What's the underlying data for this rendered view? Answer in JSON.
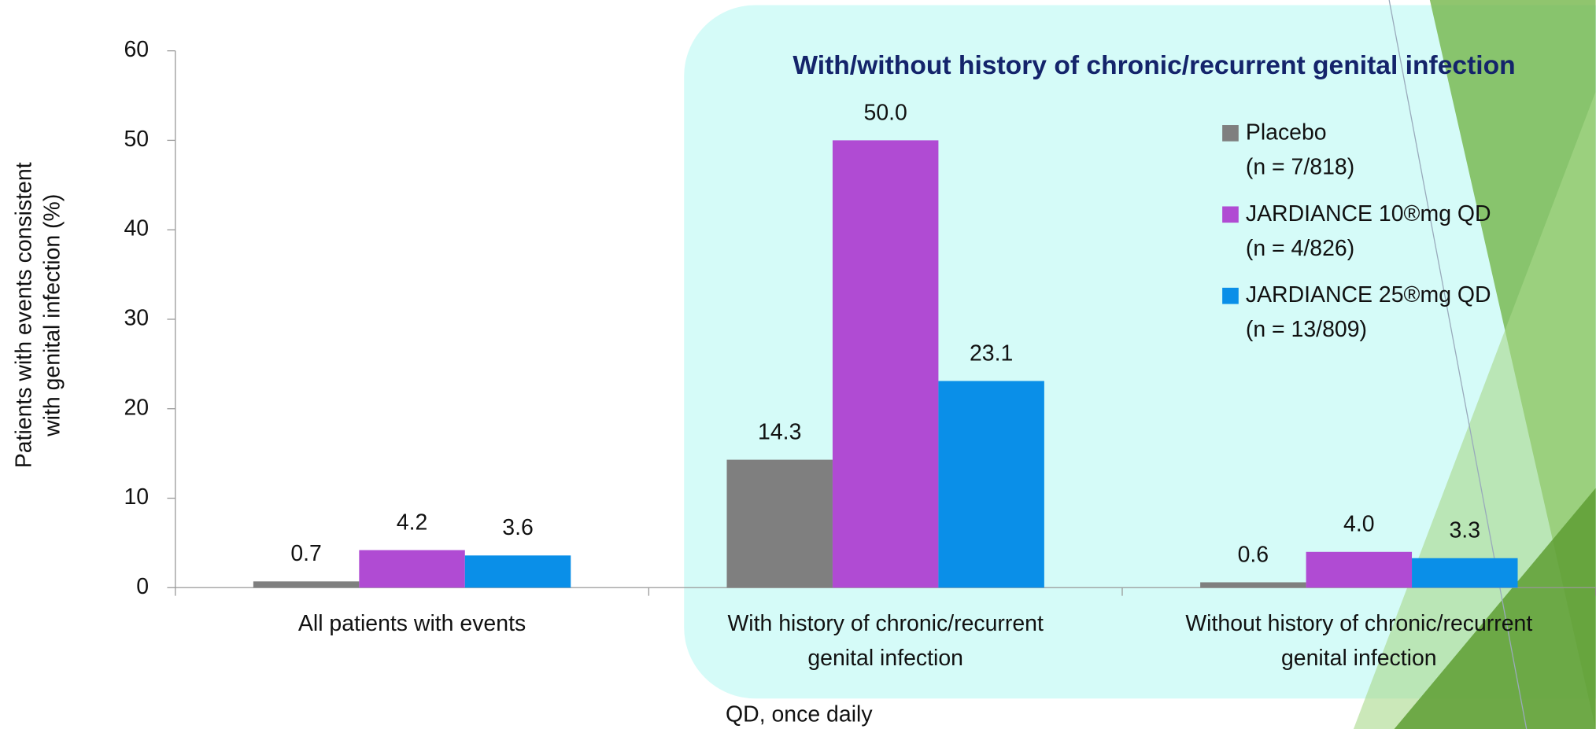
{
  "chart_data": {
    "type": "bar",
    "title": "With/without history of chronic/recurrent genital infection",
    "y_label": "Patients with events consistent\nwith genital infection (%)",
    "footnote": "QD, once daily",
    "categories": [
      "All patients with events",
      "With history of chronic/recurrent\ngenital infection",
      "Without history of chronic/recurrent\ngenital infection"
    ],
    "series": [
      {
        "name": "Placebo\n(n = 7/818)",
        "color": "#7f7f7f",
        "values": [
          0.7,
          14.3,
          0.6
        ],
        "value_labels": [
          "0.7",
          "14.3",
          "0.6"
        ]
      },
      {
        "name": "JARDIANCE 10®mg QD\n(n = 4/826)",
        "color": "#b04bd3",
        "values": [
          4.2,
          50,
          4
        ],
        "value_labels": [
          "4.2",
          "50.0",
          "4.0"
        ]
      },
      {
        "name": "JARDIANCE 25®mg QD\n(n = 13/809)",
        "color": "#0a8fe8",
        "values": [
          3.6,
          23.1,
          3.3
        ],
        "value_labels": [
          "3.6",
          "23.1",
          "3.3"
        ]
      }
    ],
    "ylim": [
      0,
      60
    ],
    "yticks": [
      0,
      10,
      20,
      30,
      40,
      50,
      60
    ]
  }
}
